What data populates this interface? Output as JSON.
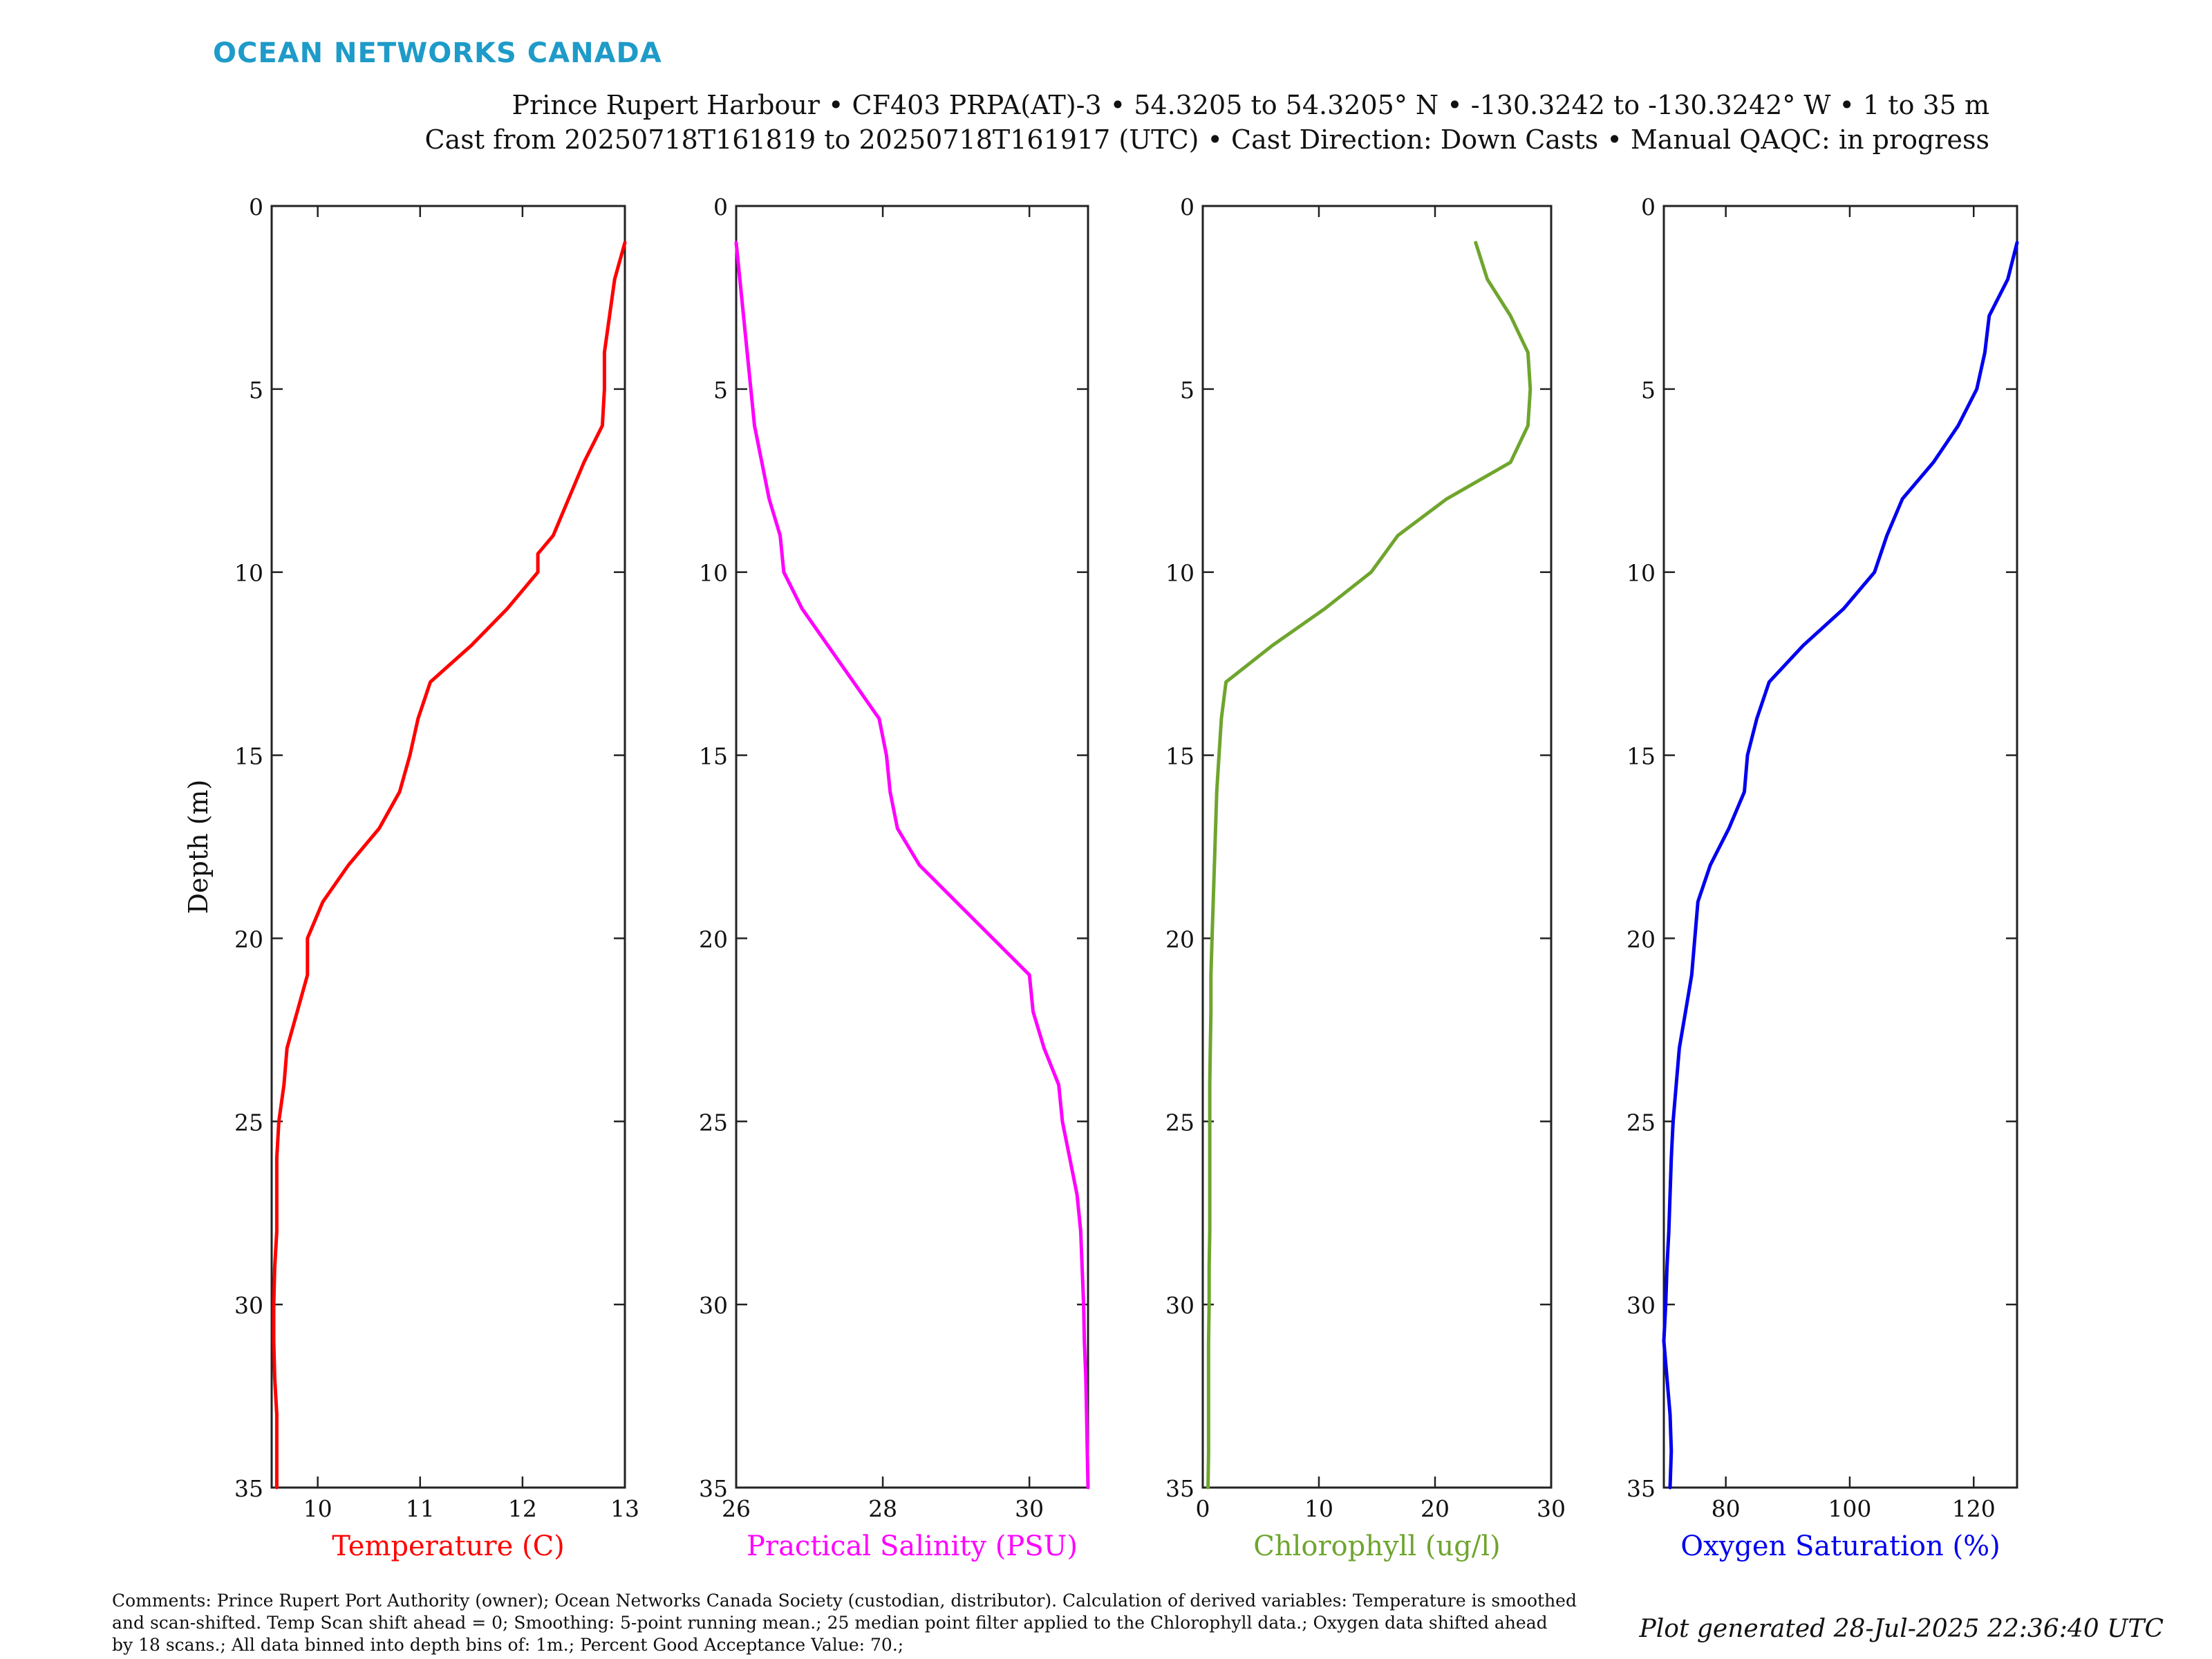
{
  "header": {
    "brand": "OCEAN NETWORKS CANADA",
    "line1": "Prince Rupert Harbour • CF403 PRPA(AT)-3 • 54.3205 to 54.3205° N • -130.3242 to -130.3242° W • 1 to 35 m",
    "line2": "Cast from 20250718T161819 to 20250718T161917 (UTC) • Cast Direction: Down Casts • Manual QAQC: in progress"
  },
  "footer": {
    "comments_line1": "Comments: Prince Rupert Port Authority (owner); Ocean Networks Canada Society (custodian, distributor). Calculation of derived variables: Temperature is smoothed",
    "comments_line2": "and scan-shifted. Temp Scan shift ahead = 0; Smoothing: 5-point running mean.; 25 median point filter applied to the Chlorophyll data.; Oxygen data shifted ahead",
    "comments_line3": "by 18 scans.; All data binned into depth bins of: 1m.; Percent Good Acceptance Value: 70.;",
    "generated": "Plot generated 28-Jul-2025 22:36:40 UTC"
  },
  "chart_data": [
    {
      "type": "line",
      "xlabel": "Temperature (C)",
      "ylabel": "Depth (m)",
      "color": "#ff0000",
      "xlim": [
        9.55,
        13
      ],
      "ylim": [
        0,
        35
      ],
      "y_reversed": true,
      "xticks": [
        10,
        11,
        12,
        13
      ],
      "yticks": [
        0,
        5,
        10,
        15,
        20,
        25,
        30,
        35
      ],
      "series": [
        {
          "x": [
            13.0,
            12.9,
            12.85,
            12.8,
            12.8,
            12.78,
            12.6,
            12.45,
            12.3,
            12.15,
            12.15,
            11.85,
            11.5,
            11.1,
            10.98,
            10.9,
            10.8,
            10.6,
            10.3,
            10.05,
            9.9,
            9.9,
            9.8,
            9.7,
            9.67,
            9.62,
            9.6,
            9.6,
            9.6,
            9.58,
            9.57,
            9.57,
            9.58,
            9.6,
            9.6
          ],
          "y": [
            1,
            2,
            3,
            4,
            5,
            6,
            7,
            8,
            9,
            9.5,
            10,
            11,
            12,
            13,
            14,
            15,
            16,
            17,
            18,
            19,
            20,
            21,
            22,
            23,
            24,
            25,
            26,
            27,
            28,
            29,
            30,
            31,
            32,
            33,
            35
          ]
        }
      ]
    },
    {
      "type": "line",
      "xlabel": "Practical Salinity (PSU)",
      "color": "#ff00ff",
      "xlim": [
        26,
        30.8
      ],
      "ylim": [
        0,
        35
      ],
      "y_reversed": true,
      "xticks": [
        26,
        28,
        30
      ],
      "yticks": [
        0,
        5,
        10,
        15,
        20,
        25,
        30,
        35
      ],
      "series": [
        {
          "x": [
            26.0,
            26.05,
            26.1,
            26.15,
            26.2,
            26.25,
            26.35,
            26.45,
            26.6,
            26.65,
            26.9,
            27.25,
            27.6,
            27.95,
            28.05,
            28.1,
            28.2,
            28.5,
            29.0,
            29.5,
            30.0,
            30.05,
            30.2,
            30.4,
            30.45,
            30.55,
            30.65,
            30.7,
            30.72,
            30.74,
            30.75,
            30.77,
            30.78,
            30.79,
            30.8
          ],
          "y": [
            1,
            2,
            3,
            4,
            5,
            6,
            7,
            8,
            9,
            10,
            11,
            12,
            13,
            14,
            15,
            16,
            17,
            18,
            19,
            20,
            21,
            22,
            23,
            24,
            25,
            26,
            27,
            28,
            29,
            30,
            31,
            32,
            33,
            34,
            35
          ]
        }
      ]
    },
    {
      "type": "line",
      "xlabel": "Chlorophyll (ug/l)",
      "color": "#6fa52e",
      "xlim": [
        0,
        30
      ],
      "ylim": [
        0,
        35
      ],
      "y_reversed": true,
      "xticks": [
        0,
        10,
        20,
        30
      ],
      "yticks": [
        0,
        5,
        10,
        15,
        20,
        25,
        30,
        35
      ],
      "series": [
        {
          "x": [
            23.5,
            24.5,
            26.5,
            28.0,
            28.2,
            28.0,
            26.5,
            21.0,
            16.8,
            14.5,
            10.5,
            6.0,
            2.0,
            1.6,
            1.4,
            1.2,
            1.1,
            1.0,
            0.9,
            0.8,
            0.7,
            0.7,
            0.65,
            0.6,
            0.6,
            0.6,
            0.6,
            0.6,
            0.55,
            0.55,
            0.5,
            0.5,
            0.5,
            0.5,
            0.45
          ],
          "y": [
            1,
            2,
            3,
            4,
            5,
            6,
            7,
            8,
            9,
            10,
            11,
            12,
            13,
            14,
            15,
            16,
            17,
            18,
            19,
            20,
            21,
            22,
            23,
            24,
            25,
            26,
            27,
            28,
            29,
            30,
            31,
            32,
            33,
            34,
            35
          ]
        }
      ]
    },
    {
      "type": "line",
      "xlabel": "Oxygen Saturation (%)",
      "color": "#0000ee",
      "xlim": [
        70,
        127
      ],
      "ylim": [
        0,
        35
      ],
      "y_reversed": true,
      "xticks": [
        80,
        100,
        120
      ],
      "yticks": [
        0,
        5,
        10,
        15,
        20,
        25,
        30,
        35
      ],
      "series": [
        {
          "x": [
            127,
            125.5,
            122.5,
            121.8,
            120.5,
            117.5,
            113.5,
            108.5,
            106.0,
            104.0,
            99.0,
            92.5,
            87.0,
            85.0,
            83.5,
            83.0,
            80.5,
            77.5,
            75.5,
            75.0,
            74.5,
            73.5,
            72.5,
            72.0,
            71.5,
            71.2,
            71.0,
            70.8,
            70.5,
            70.3,
            70.0,
            70.5,
            71.0,
            71.2,
            71.0
          ],
          "y": [
            1,
            2,
            3,
            4,
            5,
            6,
            7,
            8,
            9,
            10,
            11,
            12,
            13,
            14,
            15,
            16,
            17,
            18,
            19,
            20,
            21,
            22,
            23,
            24,
            25,
            26,
            27,
            28,
            29,
            30,
            31,
            32,
            33,
            34,
            35
          ]
        }
      ]
    }
  ]
}
